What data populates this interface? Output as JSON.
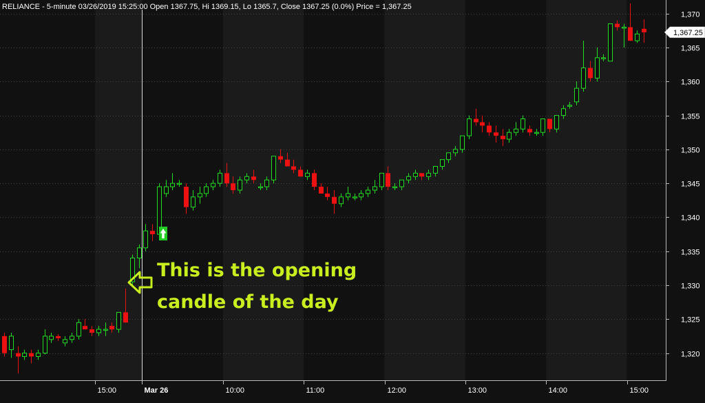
{
  "header": {
    "title": "RELIANCE - 5-minute 03/26/2019 15:25:00 Open 1367.75, Hi 1369.15, Lo 1365.7, Close 1367.25 (0.0%) Price = 1,367.25"
  },
  "price_tag": "1,367.25",
  "annotation": {
    "line1": "This is the opening",
    "line2": "candle of the day"
  },
  "colors": {
    "up": "#22dd22",
    "down": "#ee1111",
    "background": "#111111",
    "alt_band": "#1b1b1b",
    "grid": "#444444",
    "annotation": "#c8ee1e",
    "marker": "#22cc22"
  },
  "icons": {
    "annotation_arrow": "hollow-left-arrow-icon",
    "signal_marker": "up-arrow-icon"
  },
  "chart_data": {
    "type": "candlestick",
    "symbol": "RELIANCE",
    "interval": "5-minute",
    "ylim": [
      1316,
      1372
    ],
    "y_ticks": [
      1320,
      1325,
      1330,
      1335,
      1340,
      1345,
      1350,
      1355,
      1360,
      1365,
      1370
    ],
    "y_tick_labels": [
      "1,320",
      "1,325",
      "1,330",
      "1,335",
      "1,340",
      "1,345",
      "1,350",
      "1,355",
      "1,360",
      "1,365",
      "1,370"
    ],
    "x_ticks": [
      {
        "label": "15:00",
        "index": 14
      },
      {
        "label": "Mar 26",
        "index": 21,
        "bold": true
      },
      {
        "label": "10:00",
        "index": 33
      },
      {
        "label": "11:00",
        "index": 45
      },
      {
        "label": "12:00",
        "index": 57
      },
      {
        "label": "13:00",
        "index": 69
      },
      {
        "label": "14:00",
        "index": 81
      },
      {
        "label": "15:00",
        "index": 93
      }
    ],
    "session_start_index": 21,
    "last_close": 1367.25,
    "grid": true,
    "candles": [
      [
        1322.5,
        1323,
        1319.5,
        1320
      ],
      [
        1320.5,
        1323,
        1319.3,
        1322.5
      ],
      [
        1320,
        1321,
        1317,
        1319.5
      ],
      [
        1319.5,
        1320.5,
        1319,
        1320
      ],
      [
        1320,
        1320.5,
        1318.5,
        1319.5
      ],
      [
        1319.5,
        1320.5,
        1319,
        1320
      ],
      [
        1320,
        1323.5,
        1319.8,
        1322.5
      ],
      [
        1322,
        1323,
        1321.5,
        1322.5
      ],
      [
        1322.5,
        1322.8,
        1321.8,
        1322.2
      ],
      [
        1321.5,
        1322.5,
        1321,
        1322
      ],
      [
        1322,
        1323,
        1321.5,
        1322.5
      ],
      [
        1322.5,
        1325,
        1322,
        1324.5
      ],
      [
        1324,
        1325,
        1323.5,
        1323.5
      ],
      [
        1323.5,
        1324,
        1322.5,
        1323
      ],
      [
        1323,
        1324,
        1322.5,
        1323.5
      ],
      [
        1323.5,
        1324.5,
        1322.5,
        1323.5
      ],
      [
        1324,
        1324.5,
        1323,
        1323.5
      ],
      [
        1323.5,
        1326,
        1323,
        1326
      ],
      [
        1326,
        1329.5,
        1324.5,
        1324.5
      ],
      [
        1330.5,
        1334.5,
        1330,
        1334
      ],
      [
        1334,
        1336,
        1332.5,
        1335.5
      ],
      [
        1335.5,
        1339,
        1335,
        1338
      ],
      [
        1338,
        1339,
        1336.5,
        1337.5
      ],
      [
        1337.5,
        1345,
        1337.5,
        1344.5
      ],
      [
        1343.5,
        1345.5,
        1343,
        1344.5
      ],
      [
        1344.5,
        1346.5,
        1344,
        1345
      ],
      [
        1345,
        1345.5,
        1344.5,
        1345
      ],
      [
        1344.5,
        1345,
        1340.5,
        1341.5
      ],
      [
        1341.5,
        1344,
        1341,
        1343
      ],
      [
        1343,
        1344.5,
        1342,
        1343.5
      ],
      [
        1343.5,
        1345,
        1343,
        1344.5
      ],
      [
        1344.5,
        1345.5,
        1344,
        1345
      ],
      [
        1345,
        1347,
        1344.5,
        1346.5
      ],
      [
        1346.5,
        1348,
        1344.5,
        1345
      ],
      [
        1345,
        1346,
        1343.5,
        1344
      ],
      [
        1344,
        1346,
        1343.5,
        1345.5
      ],
      [
        1345.5,
        1346.5,
        1345,
        1346
      ],
      [
        1346,
        1347,
        1345,
        1345.5
      ],
      [
        1344.5,
        1345,
        1344,
        1344.5
      ],
      [
        1344.5,
        1346,
        1344,
        1345.5
      ],
      [
        1345.5,
        1349,
        1345,
        1349
      ],
      [
        1349,
        1350,
        1348,
        1348.5
      ],
      [
        1348.5,
        1349.5,
        1347.5,
        1347.5
      ],
      [
        1347.5,
        1348.5,
        1346.5,
        1347
      ],
      [
        1347,
        1347.5,
        1346,
        1346
      ],
      [
        1346,
        1347,
        1345.5,
        1346.5
      ],
      [
        1346.5,
        1347,
        1344,
        1344.5
      ],
      [
        1344.5,
        1345,
        1343.5,
        1343.5
      ],
      [
        1343.5,
        1344.5,
        1342.5,
        1343
      ],
      [
        1343,
        1344,
        1340.5,
        1342
      ],
      [
        1342,
        1343.5,
        1341.5,
        1343
      ],
      [
        1343,
        1344.5,
        1342.5,
        1343.5
      ],
      [
        1343,
        1343.5,
        1342.5,
        1343
      ],
      [
        1343,
        1344,
        1342.5,
        1343.5
      ],
      [
        1343.5,
        1344.5,
        1343,
        1344
      ],
      [
        1344,
        1345.5,
        1343.5,
        1344.5
      ],
      [
        1344.5,
        1346.5,
        1344,
        1346.5
      ],
      [
        1346.5,
        1347.5,
        1344,
        1344.5
      ],
      [
        1344.5,
        1345,
        1344,
        1344.5
      ],
      [
        1344.5,
        1345.5,
        1344,
        1345.5
      ],
      [
        1345.5,
        1346.5,
        1345,
        1346
      ],
      [
        1346,
        1347,
        1345.5,
        1346.5
      ],
      [
        1346.5,
        1346.5,
        1345.5,
        1346
      ],
      [
        1346,
        1347,
        1345.5,
        1346.5
      ],
      [
        1346.5,
        1347.5,
        1346,
        1347.5
      ],
      [
        1347.5,
        1348.5,
        1347,
        1348.5
      ],
      [
        1348.5,
        1349.5,
        1348,
        1349.5
      ],
      [
        1349.5,
        1350.5,
        1349,
        1350
      ],
      [
        1350,
        1352,
        1349.5,
        1352
      ],
      [
        1352,
        1355,
        1351.5,
        1354.5
      ],
      [
        1354.5,
        1356,
        1353.5,
        1354
      ],
      [
        1354,
        1355,
        1352.5,
        1353.5
      ],
      [
        1353.5,
        1354,
        1352,
        1352.5
      ],
      [
        1352.5,
        1353.5,
        1351,
        1352
      ],
      [
        1352,
        1353,
        1350.5,
        1351.5
      ],
      [
        1351.5,
        1353,
        1351,
        1352.5
      ],
      [
        1352.5,
        1354,
        1352,
        1353
      ],
      [
        1353,
        1355,
        1352.5,
        1354.5
      ],
      [
        1353,
        1353.5,
        1352,
        1352.5
      ],
      [
        1352.5,
        1353,
        1352,
        1352.5
      ],
      [
        1352.5,
        1354.5,
        1352,
        1354.5
      ],
      [
        1354.5,
        1354.5,
        1352.5,
        1353
      ],
      [
        1353,
        1355,
        1352.5,
        1355
      ],
      [
        1355,
        1356.5,
        1354.5,
        1356
      ],
      [
        1356.5,
        1357,
        1356,
        1356.5
      ],
      [
        1357,
        1360,
        1356.5,
        1359
      ],
      [
        1359,
        1366,
        1358.5,
        1362
      ],
      [
        1362,
        1363,
        1360,
        1360.5
      ],
      [
        1360.5,
        1365,
        1360,
        1363.5
      ],
      [
        1363.5,
        1364,
        1363,
        1363.5
      ],
      [
        1363,
        1368.5,
        1363,
        1368.5
      ],
      [
        1368.5,
        1369,
        1367.5,
        1368
      ],
      [
        1368,
        1368.5,
        1365,
        1368
      ],
      [
        1368,
        1371.5,
        1366,
        1366
      ],
      [
        1366,
        1367.5,
        1365.7,
        1367
      ],
      [
        1367.75,
        1369.15,
        1365.7,
        1367.25
      ]
    ]
  }
}
